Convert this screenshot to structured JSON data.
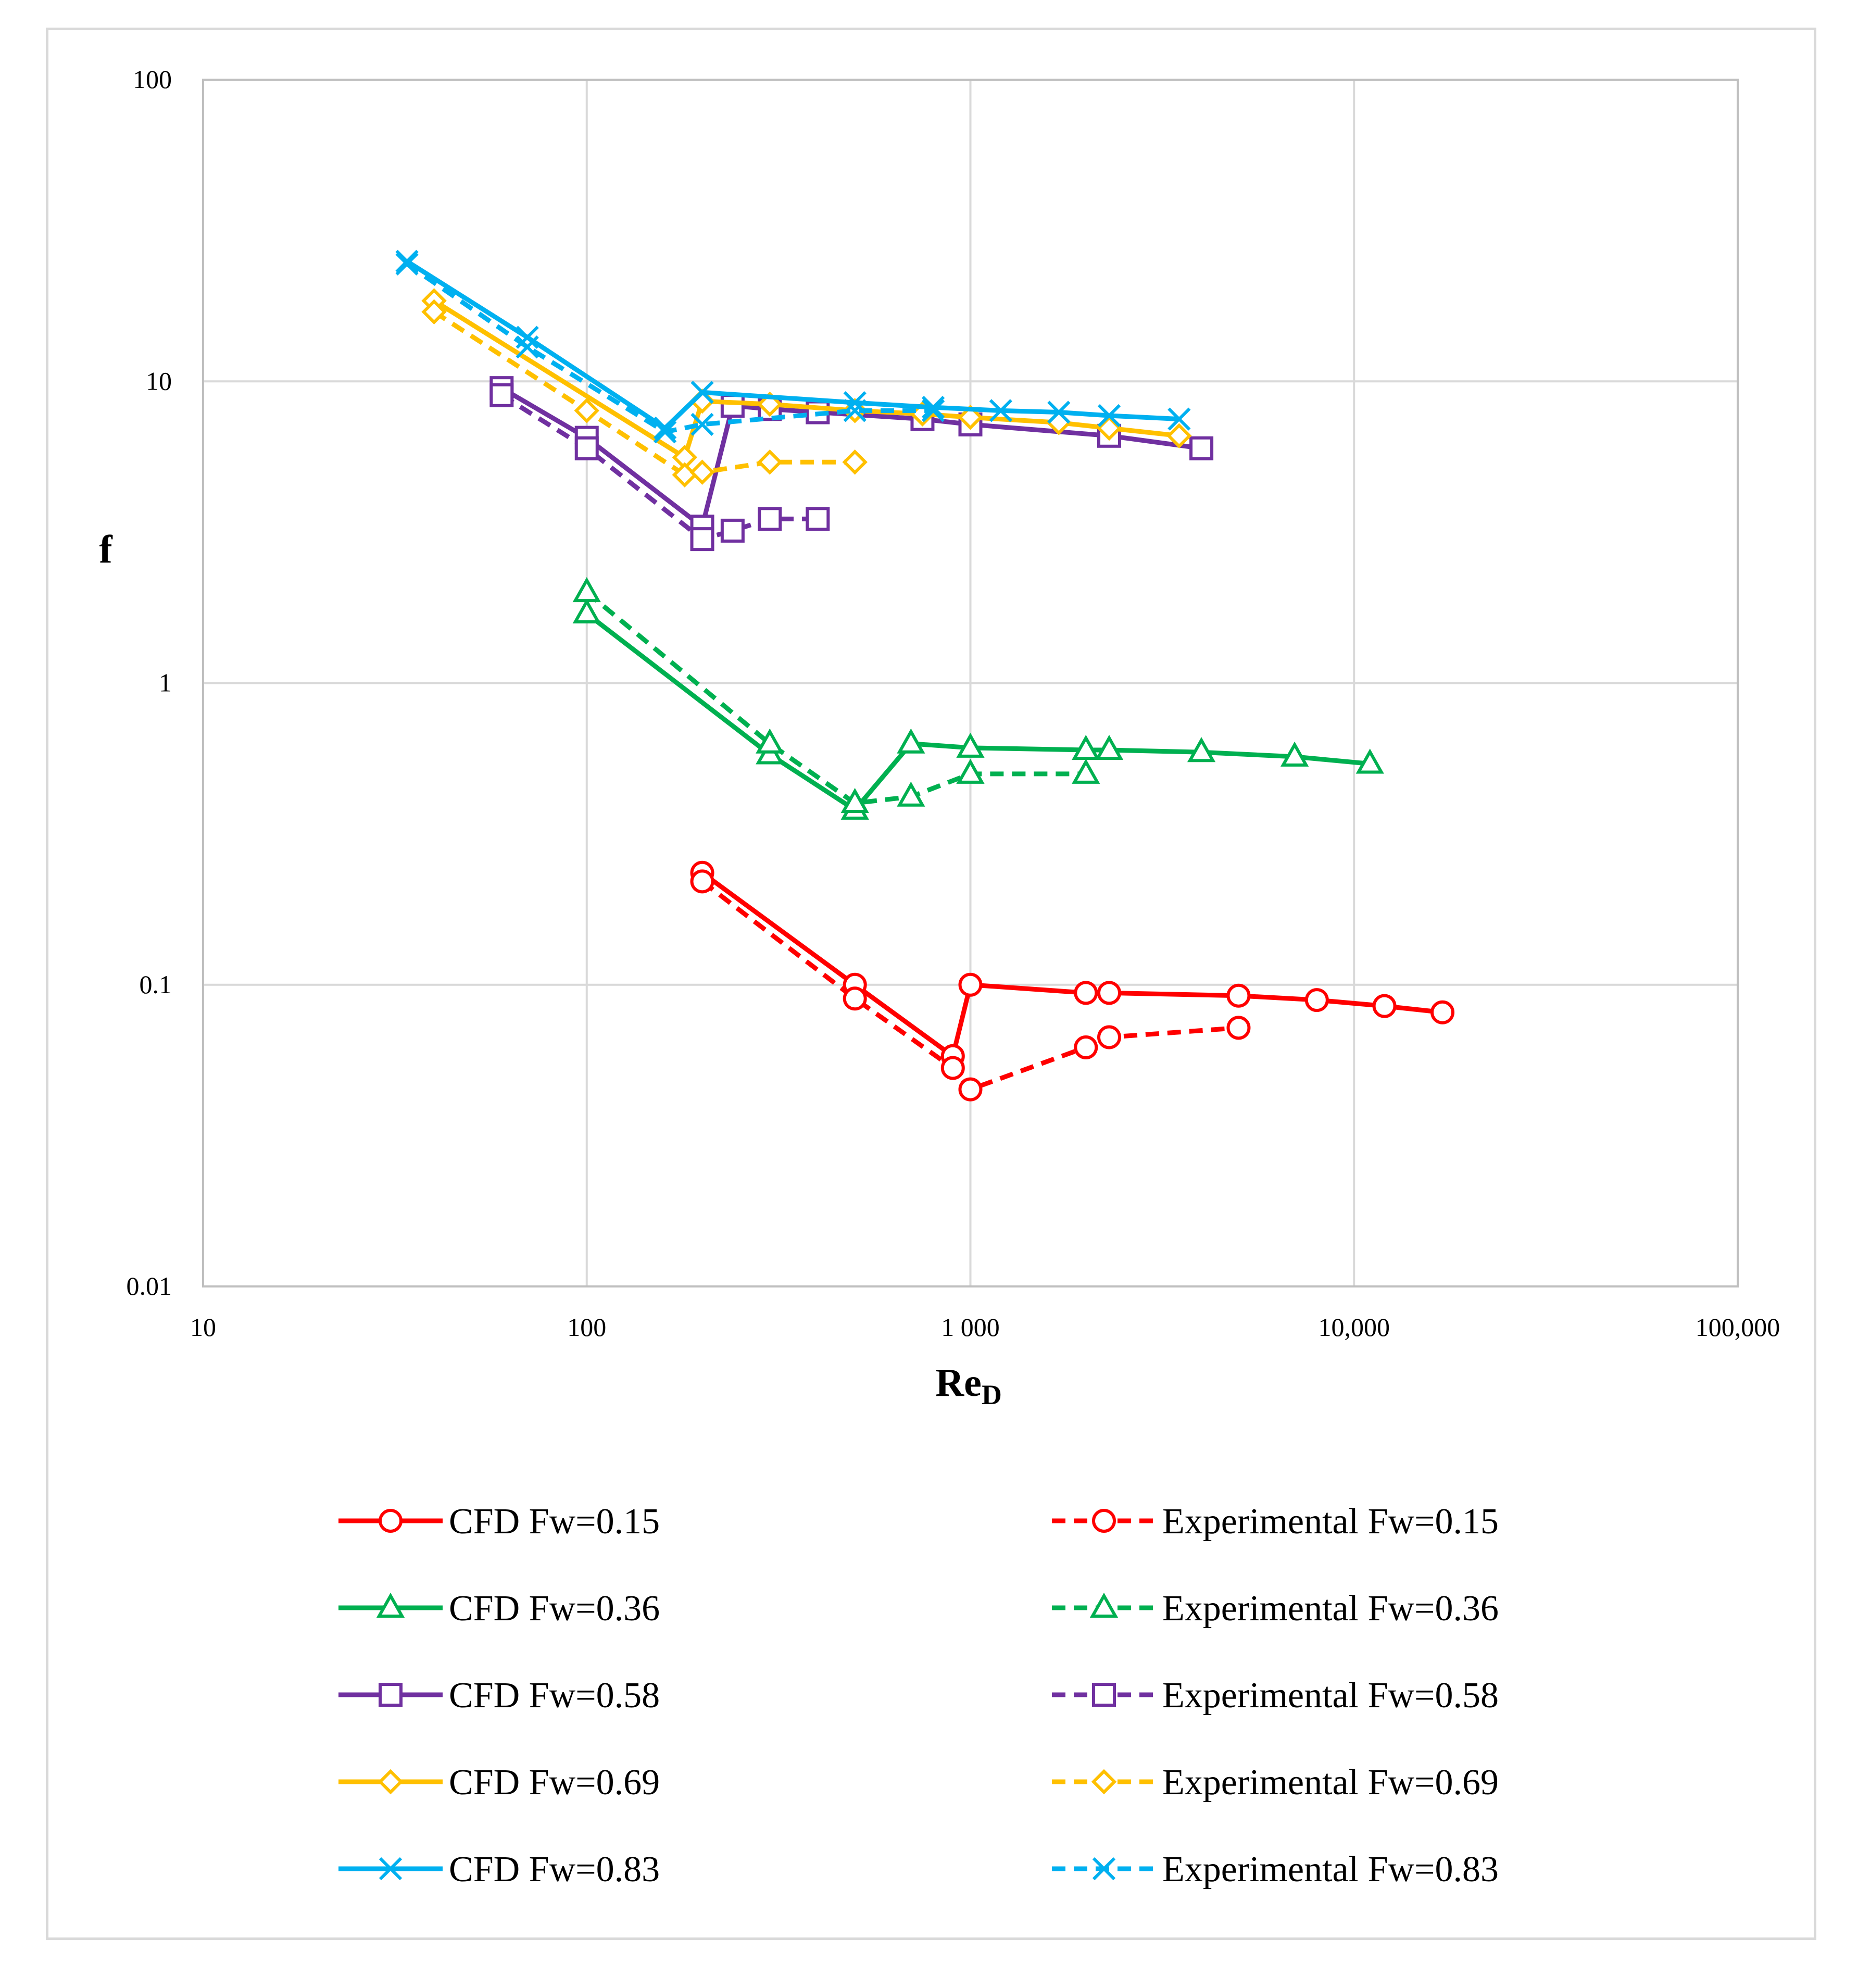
{
  "chart_data": {
    "type": "line",
    "title": "",
    "xlabel": "Re",
    "xlabel_sub": "D",
    "ylabel": "f",
    "x_scale": "log",
    "y_scale": "log",
    "xlim": [
      10,
      100000
    ],
    "ylim": [
      0.01,
      100
    ],
    "grid": true,
    "legend_position": "bottom",
    "x_ticks": [
      {
        "value": 10,
        "label": "10"
      },
      {
        "value": 100,
        "label": "100"
      },
      {
        "value": 1000,
        "label": "1 000"
      },
      {
        "value": 10000,
        "label": "10,000"
      },
      {
        "value": 100000,
        "label": "100,000"
      }
    ],
    "y_ticks": [
      {
        "value": 0.01,
        "label": "0.01"
      },
      {
        "value": 0.1,
        "label": "0.1"
      },
      {
        "value": 1,
        "label": "1"
      },
      {
        "value": 10,
        "label": "10"
      },
      {
        "value": 100,
        "label": "100"
      }
    ],
    "series": [
      {
        "name": "CFD Fw=0.15",
        "color": "#ff0000",
        "dash": false,
        "marker": "circle",
        "x": [
          200,
          500,
          900,
          1000,
          2000,
          2300,
          5000,
          8000,
          12000,
          17000
        ],
        "y": [
          0.235,
          0.1,
          0.058,
          0.1,
          0.094,
          0.094,
          0.092,
          0.089,
          0.085,
          0.081
        ]
      },
      {
        "name": "Experimental Fw=0.15",
        "color": "#ff0000",
        "dash": true,
        "marker": "circle",
        "x": [
          200,
          500,
          900,
          1000,
          2000,
          2300,
          5000
        ],
        "y": [
          0.22,
          0.09,
          0.053,
          0.045,
          0.062,
          0.067,
          0.072
        ]
      },
      {
        "name": "CFD Fw=0.36",
        "color": "#00b050",
        "dash": false,
        "marker": "triangle",
        "x": [
          100,
          300,
          500,
          700,
          1000,
          2000,
          2300,
          4000,
          7000,
          11000
        ],
        "y": [
          1.7,
          0.58,
          0.38,
          0.63,
          0.61,
          0.6,
          0.6,
          0.59,
          0.57,
          0.54
        ]
      },
      {
        "name": "Experimental Fw=0.36",
        "color": "#00b050",
        "dash": true,
        "marker": "triangle",
        "x": [
          100,
          300,
          500,
          700,
          1000,
          2000
        ],
        "y": [
          2.0,
          0.63,
          0.4,
          0.42,
          0.5,
          0.5
        ]
      },
      {
        "name": "CFD Fw=0.58",
        "color": "#7030a0",
        "dash": false,
        "marker": "square",
        "x": [
          60,
          100,
          200,
          240,
          300,
          400,
          750,
          1000,
          2300,
          4000
        ],
        "y": [
          9.5,
          6.5,
          3.3,
          8.3,
          8.1,
          7.9,
          7.5,
          7.2,
          6.6,
          6.0
        ]
      },
      {
        "name": "Experimental Fw=0.58",
        "color": "#7030a0",
        "dash": true,
        "marker": "square",
        "x": [
          60,
          100,
          200,
          240,
          300,
          400
        ],
        "y": [
          9.0,
          6.0,
          3.0,
          3.2,
          3.5,
          3.5
        ]
      },
      {
        "name": "CFD Fw=0.69",
        "color": "#ffc000",
        "dash": false,
        "marker": "diamond",
        "x": [
          40,
          180,
          200,
          300,
          500,
          750,
          1000,
          1700,
          2300,
          3500
        ],
        "y": [
          18.5,
          5.6,
          8.6,
          8.4,
          8.0,
          7.8,
          7.6,
          7.3,
          7.0,
          6.6
        ]
      },
      {
        "name": "Experimental Fw=0.69",
        "color": "#ffc000",
        "dash": true,
        "marker": "diamond",
        "x": [
          40,
          100,
          180,
          200,
          300,
          500
        ],
        "y": [
          17.0,
          8.0,
          4.9,
          5.0,
          5.4,
          5.4
        ]
      },
      {
        "name": "CFD Fw=0.83",
        "color": "#00b0f0",
        "dash": false,
        "marker": "x",
        "x": [
          34,
          70,
          160,
          200,
          500,
          800,
          1200,
          1700,
          2300,
          3500
        ],
        "y": [
          25.0,
          14.0,
          7.0,
          9.2,
          8.5,
          8.2,
          8.0,
          7.9,
          7.7,
          7.5
        ]
      },
      {
        "name": "Experimental Fw=0.83",
        "color": "#00b0f0",
        "dash": true,
        "marker": "x",
        "x": [
          34,
          70,
          160,
          200,
          500,
          800
        ],
        "y": [
          24.5,
          13.0,
          6.8,
          7.2,
          8.0,
          8.0
        ]
      }
    ]
  }
}
